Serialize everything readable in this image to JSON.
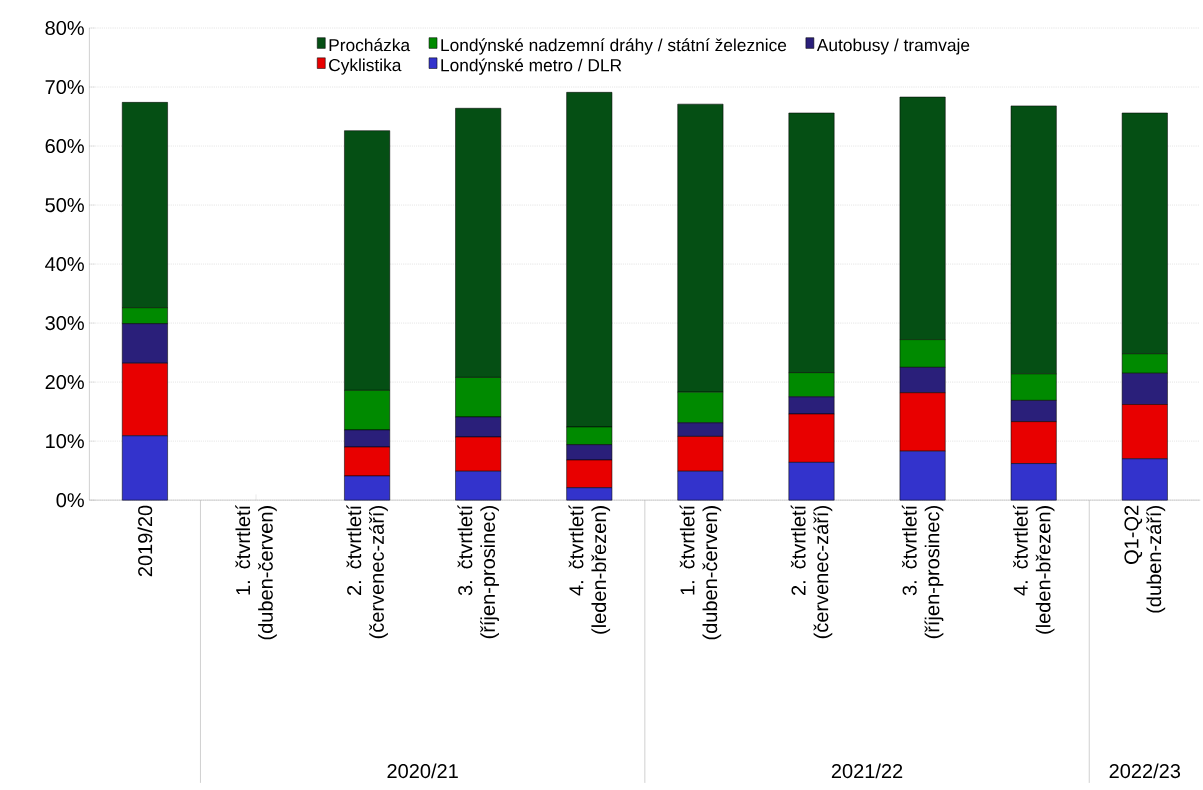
{
  "chart_data": {
    "type": "bar",
    "stacked": true,
    "categories": [
      "2019/20",
      "1. čtvrtletí (duben-červen)",
      "2. čtvrtletí (červenec-září)",
      "3. čtvrtletí (říjen-prosinec)",
      "4. čtvrtletí (leden-březen)",
      "1. čtvrtletí (duben-červen)",
      "2. čtvrtletí (červenec-září)",
      "3. čtvrtletí (říjen-prosinec)",
      "4. čtvrtletí (leden-březen)",
      "Q1-Q2 (duben-září)"
    ],
    "series": [
      {
        "name": "Londýnské metro / DLR",
        "color": "#3333cc",
        "values": [
          10.9,
          null,
          4.1,
          4.9,
          2.1,
          4.9,
          6.4,
          8.3,
          6.2,
          7.0
        ]
      },
      {
        "name": "Cyklistika",
        "color": "#e80000",
        "values": [
          12.3,
          null,
          4.9,
          5.8,
          4.7,
          5.9,
          8.2,
          9.9,
          7.1,
          9.2
        ]
      },
      {
        "name": "Autobusy / tramvaje",
        "color": "#2a1f7a",
        "values": [
          6.7,
          null,
          2.9,
          3.4,
          2.6,
          2.3,
          2.9,
          4.3,
          3.6,
          5.3
        ]
      },
      {
        "name": "Londýnské nadzemní dráhy / státní železnice",
        "color": "#008a00",
        "values": [
          2.7,
          null,
          6.7,
          6.7,
          3.0,
          5.2,
          4.1,
          4.7,
          4.5,
          3.3
        ]
      },
      {
        "name": "Procházka",
        "color": "#054f14",
        "values": [
          34.8,
          null,
          44.0,
          45.6,
          56.7,
          48.8,
          44.0,
          41.1,
          45.4,
          40.8
        ]
      }
    ],
    "ylim": [
      0,
      80
    ],
    "yticks": [
      {
        "value": 0,
        "label": "0%"
      },
      {
        "value": 10,
        "label": "10%"
      },
      {
        "value": 20,
        "label": "20%"
      },
      {
        "value": 30,
        "label": "30%"
      },
      {
        "value": 40,
        "label": "40%"
      },
      {
        "value": 50,
        "label": "50%"
      },
      {
        "value": 60,
        "label": "60%"
      },
      {
        "value": 70,
        "label": "70%"
      },
      {
        "value": 80,
        "label": "80%"
      }
    ],
    "grid": "y",
    "legend": "top",
    "annotations": [
      "2020/21",
      "2021/22",
      "2022/23"
    ]
  }
}
